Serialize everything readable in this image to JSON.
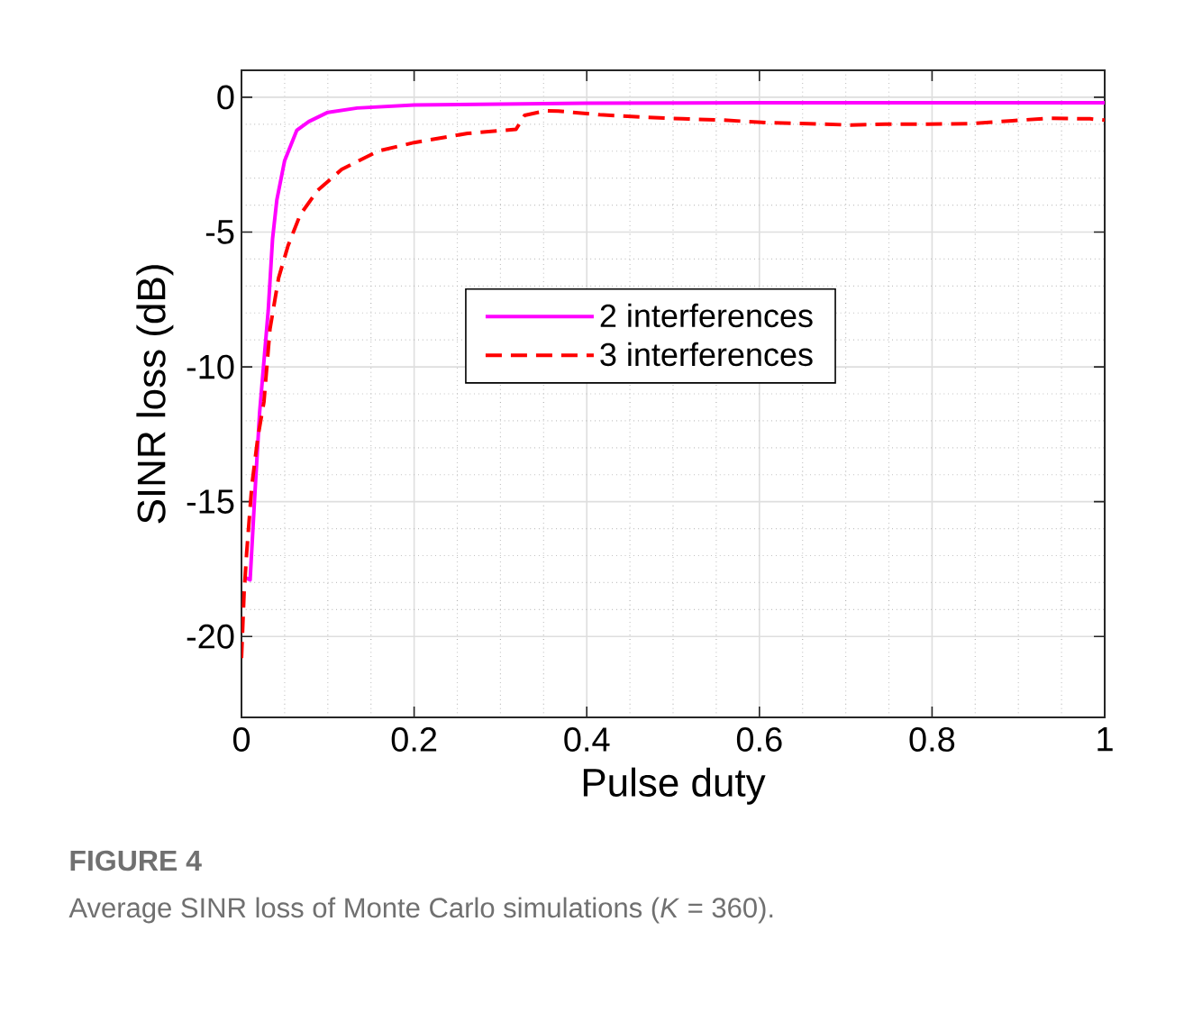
{
  "chart_data": {
    "type": "line",
    "xlabel": "Pulse duty",
    "ylabel": "SINR loss (dB)",
    "annotations": [
      "FIGURE 4",
      "Average SINR loss of Monte Carlo simulations (*K* = 360)."
    ],
    "xlim": [
      0,
      1
    ],
    "ylim": [
      -23,
      1
    ],
    "xticks": [
      0,
      0.2,
      0.4,
      0.6,
      0.8,
      1
    ],
    "yticks": [
      -20,
      -15,
      -10,
      -5,
      0
    ],
    "grid": true,
    "legend": "right",
    "marker": "none",
    "series": [
      {
        "name": "2 interferences",
        "color": "#ff00ff",
        "line_style": "solid",
        "x": [
          0.0035,
          0.01,
          0.015,
          0.021,
          0.031,
          0.036,
          0.041,
          0.05,
          0.064,
          0.078,
          0.1,
          0.134,
          0.2,
          0.4,
          0.6,
          0.8,
          1
        ],
        "values": [
          -17.8,
          -17.9,
          -15.0,
          -11.7,
          -7.9,
          -5.25,
          -3.8,
          -2.35,
          -1.23,
          -0.9,
          -0.56,
          -0.4,
          -0.29,
          -0.22,
          -0.2,
          -0.2,
          -0.2
        ]
      },
      {
        "name": "3 interferences",
        "color": "#ff0000",
        "line_style": "dashed",
        "x": [
          0,
          0.003,
          0.006,
          0.012,
          0.019,
          0.026,
          0.033,
          0.043,
          0.054,
          0.068,
          0.088,
          0.116,
          0.158,
          0.2,
          0.262,
          0.318,
          0.328,
          0.353,
          0.367,
          0.415,
          0.462,
          0.511,
          0.559,
          0.608,
          0.657,
          0.706,
          0.746,
          0.795,
          0.844,
          0.893,
          0.935,
          0.983,
          1
        ],
        "values": [
          -20.8,
          -18.4,
          -16.9,
          -14.4,
          -12.6,
          -11.3,
          -8.6,
          -6.7,
          -5.5,
          -4.36,
          -3.46,
          -2.68,
          -2.0,
          -1.68,
          -1.34,
          -1.19,
          -0.67,
          -0.5,
          -0.51,
          -0.65,
          -0.73,
          -0.8,
          -0.85,
          -0.94,
          -0.98,
          -1.03,
          -1.0,
          -1.0,
          -0.98,
          -0.87,
          -0.78,
          -0.8,
          -0.85
        ]
      }
    ]
  }
}
